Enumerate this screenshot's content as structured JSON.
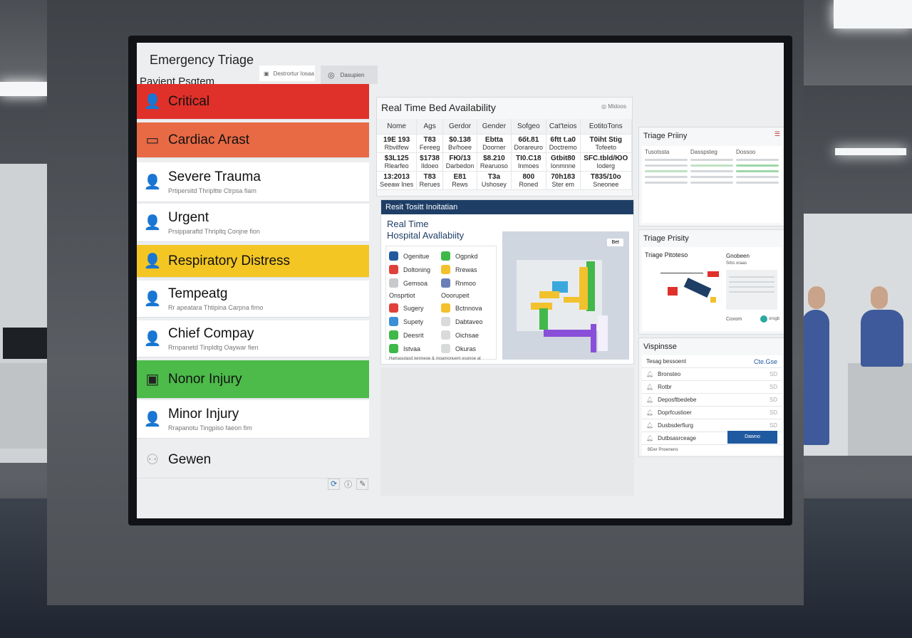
{
  "app": {
    "title": "Emergency Triage",
    "search_label": "Destrortur Iosaa",
    "user_label": "Dasupien"
  },
  "patients": {
    "title": "Payient Psgtem",
    "items": [
      {
        "label": "Critical",
        "sub": "",
        "color": "#e0302a",
        "icon": "person-icon"
      },
      {
        "label": "Cardiac Arast",
        "sub": "",
        "color": "#e86a45",
        "icon": "briefcase-icon"
      },
      {
        "label": "Severe Trauma",
        "sub": "Prtipersitd Thripltte Ctrpsa fiam",
        "color": "#ffffff",
        "icon": "person-icon"
      },
      {
        "label": "Urgent",
        "sub": "Prsipparaftd Thripltq Conjne fion",
        "color": "#ffffff",
        "icon": "person-icon"
      },
      {
        "label": "Respiratory Distress",
        "sub": "",
        "color": "#f3c623",
        "icon": "person-icon"
      },
      {
        "label": "Tempeatg",
        "sub": "Rr apeatara Thtipina Carpna fimo",
        "color": "#ffffff",
        "icon": "person-icon"
      },
      {
        "label": "Chief Compay",
        "sub": "Rrnpanetd Tinpldtg Oaywar fien",
        "color": "#ffffff",
        "icon": "person-icon"
      },
      {
        "label": "Nonor Injury",
        "sub": "",
        "color": "#4cbb4a",
        "icon": "kit-icon"
      },
      {
        "label": "Minor Injury",
        "sub": "Rrapanotu Tingpiso faeon fim",
        "color": "#ffffff",
        "icon": "person-icon"
      },
      {
        "label": "Gewen",
        "sub": "",
        "color": "#eceef0",
        "icon": "group-icon"
      }
    ]
  },
  "beds": {
    "title": "Real Time Bed Availability",
    "action": "Midoos",
    "columns": [
      "Nome",
      "Ags",
      "Gerdor",
      "Gender",
      "Sofgeo",
      "Cat'teios",
      "EotitoTons"
    ],
    "rows": [
      [
        [
          "19E 193",
          "Rbvilfew"
        ],
        [
          "T83",
          "Fereeg"
        ],
        [
          "$0.138",
          "Bv/hoee"
        ],
        [
          "Ebtta",
          "Doorner"
        ],
        [
          "6бt.81",
          "Dorareuro"
        ],
        [
          "6ftt t.a0",
          "Doctremo"
        ],
        [
          "T0iht Stig",
          "Tofeeto"
        ]
      ],
      [
        [
          "$3L125",
          "Rlearfeo"
        ],
        [
          "$1738",
          "Ildoeo"
        ],
        [
          "FЮ/13",
          "Darbedon"
        ],
        [
          "$8.210",
          "Rearuoso"
        ],
        [
          "TI0.C18",
          "Inmoes"
        ],
        [
          "Gtbit80",
          "Ionmnne"
        ],
        [
          "SFC.tbld/ЮO",
          "Ioderg"
        ]
      ],
      [
        [
          "13:2013",
          "Seeaw Ines"
        ],
        [
          "T83",
          "Rerues"
        ],
        [
          "E81",
          "Rews"
        ],
        [
          "T3a",
          "Ushosey"
        ],
        [
          "800",
          "Roned"
        ],
        [
          "70h183",
          "Ster em"
        ],
        [
          "T835/10o",
          "Sneonee"
        ]
      ]
    ]
  },
  "hospital": {
    "banner": "Resit Tositt Inoitatian",
    "title_line1": "Real Time",
    "title_line2": "Hospital Avallabiity",
    "legend_top": [
      {
        "label": "Ogenitue",
        "color": "#1f5a9e"
      },
      {
        "label": "Ogpnkd",
        "color": "#3fb84a"
      },
      {
        "label": "Doltoning",
        "color": "#e0403a"
      },
      {
        "label": "Rrewas",
        "color": "#f2c12e"
      },
      {
        "label": "Gemsoa",
        "color": "#c7c9cc"
      },
      {
        "label": "Rnmoo",
        "color": "#6a7fb5"
      }
    ],
    "group1": "Onsprtiot",
    "group2": "Ooorupeit",
    "legend_bottom": [
      {
        "label": "Sugery",
        "color": "#e0403a"
      },
      {
        "label": "Bctnnova",
        "color": "#f2c12e"
      },
      {
        "label": "Supety",
        "color": "#3a8fd6"
      },
      {
        "label": "Dabtaveo",
        "color": "#d8dadc"
      },
      {
        "label": "Deesrit",
        "color": "#3fb84a"
      },
      {
        "label": "Oichsae",
        "color": "#d8dadc"
      },
      {
        "label": "Istvaa",
        "color": "#3fb84a"
      },
      {
        "label": "Okuras",
        "color": "#d8dadc"
      }
    ],
    "footnote": "Hamasutasit Ienmeoe & moamonuem esonoe at",
    "map_button": "Bet"
  },
  "triage1": {
    "title": "Triage Priiny",
    "cols": [
      "Tusotssta",
      "Dasspsteg",
      "Dossoo"
    ]
  },
  "triage2": {
    "title": "Triage Prisity",
    "diagram_title": "Triage Pitoteso",
    "side_title": "Gnobeen",
    "side_sub": "Srbs oraas",
    "footer_label": "Coxom",
    "footer_end": "orsgb"
  },
  "response": {
    "title": "Vispinsse",
    "header": "Tesag bessoent",
    "header_right": "Cte.Gse",
    "items": [
      {
        "label": "Bronsteo",
        "value": "SD"
      },
      {
        "label": "Rotbr",
        "value": "SD"
      },
      {
        "label": "Deposftbedebe",
        "value": "SD"
      },
      {
        "label": "Doprfcustioer",
        "value": "SD"
      },
      {
        "label": "Dusbsderfiurg",
        "value": "SD"
      },
      {
        "label": "Dutbsasrceage",
        "value": ""
      }
    ],
    "footer": "BDer Pnoeneno",
    "button": "Dawno"
  },
  "colors": {
    "critical": "#e0302a",
    "cardiac": "#e86a45",
    "respiratory": "#f3c623",
    "minor": "#4cbb4a",
    "banner": "#1e3e66",
    "button": "#1f5aa0"
  }
}
